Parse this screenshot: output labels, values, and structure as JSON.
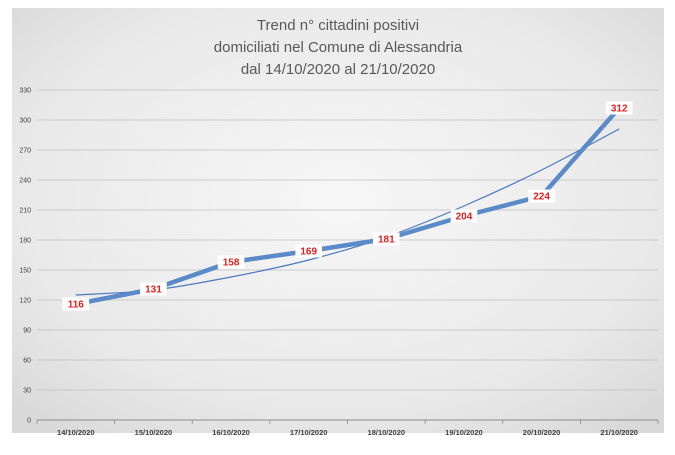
{
  "chart_data": {
    "type": "line",
    "title_lines": [
      "Trend n° cittadini positivi",
      "domiciliati nel Comune di Alessandria",
      "dal 14/10/2020 al 21/10/2020"
    ],
    "categories": [
      "14/10/2020",
      "15/10/2020",
      "16/10/2020",
      "17/10/2020",
      "18/10/2020",
      "19/10/2020",
      "20/10/2020",
      "21/10/2020"
    ],
    "series": [
      {
        "values": [
          116,
          131,
          158,
          169,
          181,
          204,
          224,
          312
        ],
        "color": "#5b8ac8",
        "labels": [
          "116",
          "131",
          "158",
          "169",
          "181",
          "204",
          "224",
          "312"
        ]
      }
    ],
    "trendline": {
      "kind": "exponential",
      "values": [
        125,
        130,
        143,
        160,
        183,
        214,
        250,
        291
      ],
      "color": "#4a7abf"
    },
    "yticks": [
      "0",
      "30",
      "60",
      "90",
      "120",
      "150",
      "180",
      "210",
      "240",
      "270",
      "300",
      "330"
    ],
    "ylim": [
      0,
      330
    ],
    "grid": true
  }
}
